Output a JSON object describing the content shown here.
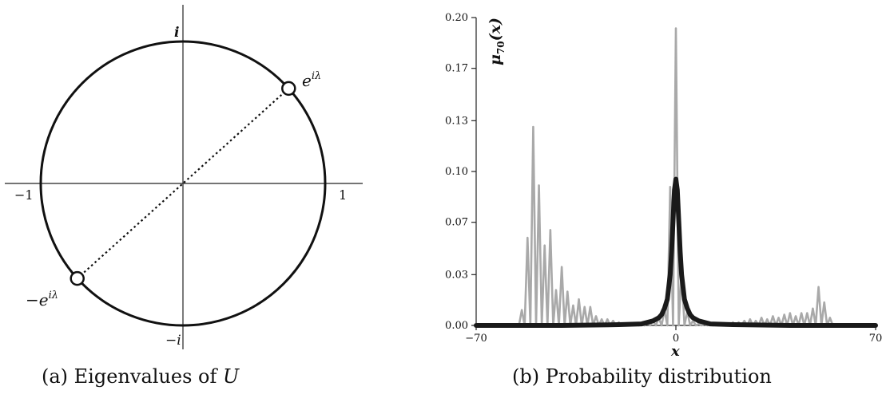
{
  "panel_a": {
    "caption_prefix": "(a) Eigenvalues of",
    "caption_var": "U",
    "labels": {
      "top": "i",
      "bottom": "−i",
      "left": "−1",
      "right": "1",
      "point_upper_base": "e",
      "point_upper_sup": "iλ",
      "point_lower_base": "−e",
      "point_lower_sup": "iλ"
    },
    "eigen_angle_deg": 42
  },
  "panel_b": {
    "caption": "(b) Probability distribution",
    "ylabel_base": "μ",
    "ylabel_sub": "70",
    "ylabel_arg": "(x)",
    "xlabel": "x",
    "colors": {
      "histogram": "#a9a9a9",
      "fit": "#1a1a1a"
    }
  },
  "chart_data": {
    "type": "line",
    "xlabel": "x",
    "ylabel": "μ70(x)",
    "xlim": [
      -70,
      70
    ],
    "ylim": [
      0,
      0.2
    ],
    "xticks": [
      "−70",
      "0",
      "70"
    ],
    "yticks": [
      "0.00",
      "0.03",
      "0.07",
      "0.10",
      "0.13",
      "0.17",
      "0.20"
    ],
    "ytick_values": [
      0.0,
      0.033,
      0.067,
      0.1,
      0.133,
      0.167,
      0.2
    ],
    "series": [
      {
        "x": [
          -70,
          -55,
          -54,
          -53,
          -52,
          -51,
          -50,
          -49,
          -48,
          -47,
          -46,
          -45,
          -44,
          -43,
          -42,
          -41,
          -40,
          -39,
          -38,
          -37,
          -36,
          -35,
          -34,
          -33,
          -32,
          -31,
          -30,
          -29,
          -28,
          -27,
          -26,
          -25,
          -24,
          -23,
          -22,
          -21,
          -20,
          -19,
          -18,
          -17,
          -16,
          -15,
          -14,
          -13,
          -12,
          -11,
          -10,
          -9,
          -8,
          -7,
          -6,
          -5,
          -4,
          -3,
          -2,
          -1,
          0,
          1,
          2,
          3,
          4,
          5,
          6,
          7,
          8,
          9,
          10,
          11,
          12,
          13,
          14,
          15,
          16,
          17,
          18,
          19,
          20,
          21,
          22,
          23,
          24,
          25,
          26,
          27,
          28,
          29,
          30,
          31,
          32,
          33,
          34,
          35,
          36,
          37,
          38,
          39,
          40,
          41,
          42,
          43,
          44,
          45,
          46,
          47,
          48,
          49,
          50,
          51,
          52,
          53,
          54,
          55,
          70
        ],
        "values": [
          0,
          0,
          0.01,
          0,
          0.057,
          0,
          0.129,
          0,
          0.091,
          0,
          0.052,
          0,
          0.062,
          0,
          0.023,
          0,
          0.038,
          0,
          0.022,
          0,
          0.013,
          0,
          0.017,
          0,
          0.012,
          0,
          0.012,
          0,
          0.006,
          0,
          0.004,
          0,
          0.004,
          0,
          0.003,
          0,
          0.002,
          0,
          0.001,
          0,
          0.001,
          0,
          0.001,
          0,
          0.001,
          0,
          0.002,
          0,
          0.003,
          0,
          0.005,
          0,
          0.01,
          0,
          0.09,
          0,
          0.193,
          0,
          0.036,
          0,
          0.009,
          0,
          0.003,
          0,
          0.001,
          0,
          0.001,
          0,
          0.001,
          0,
          0.001,
          0,
          0.001,
          0,
          0.001,
          0,
          0.002,
          0,
          0.002,
          0,
          0.003,
          0,
          0.004,
          0,
          0.003,
          0,
          0.005,
          0,
          0.004,
          0,
          0.006,
          0,
          0.005,
          0,
          0.007,
          0,
          0.008,
          0,
          0.006,
          0,
          0.008,
          0,
          0.008,
          0,
          0.011,
          0,
          0.025,
          0,
          0.015,
          0,
          0.005,
          0,
          0
        ]
      },
      {
        "x": [
          -70,
          -40,
          -20,
          -12,
          -8,
          -6,
          -5,
          -4,
          -3,
          -2,
          -1.5,
          -1,
          -0.5,
          0,
          0.5,
          1,
          1.5,
          2,
          3,
          4,
          5,
          6,
          8,
          12,
          20,
          40,
          70
        ],
        "values": [
          0,
          0,
          0.0005,
          0.001,
          0.003,
          0.005,
          0.007,
          0.011,
          0.017,
          0.033,
          0.048,
          0.068,
          0.088,
          0.095,
          0.088,
          0.068,
          0.048,
          0.033,
          0.017,
          0.011,
          0.007,
          0.005,
          0.003,
          0.001,
          0.0005,
          0,
          0
        ]
      }
    ]
  }
}
